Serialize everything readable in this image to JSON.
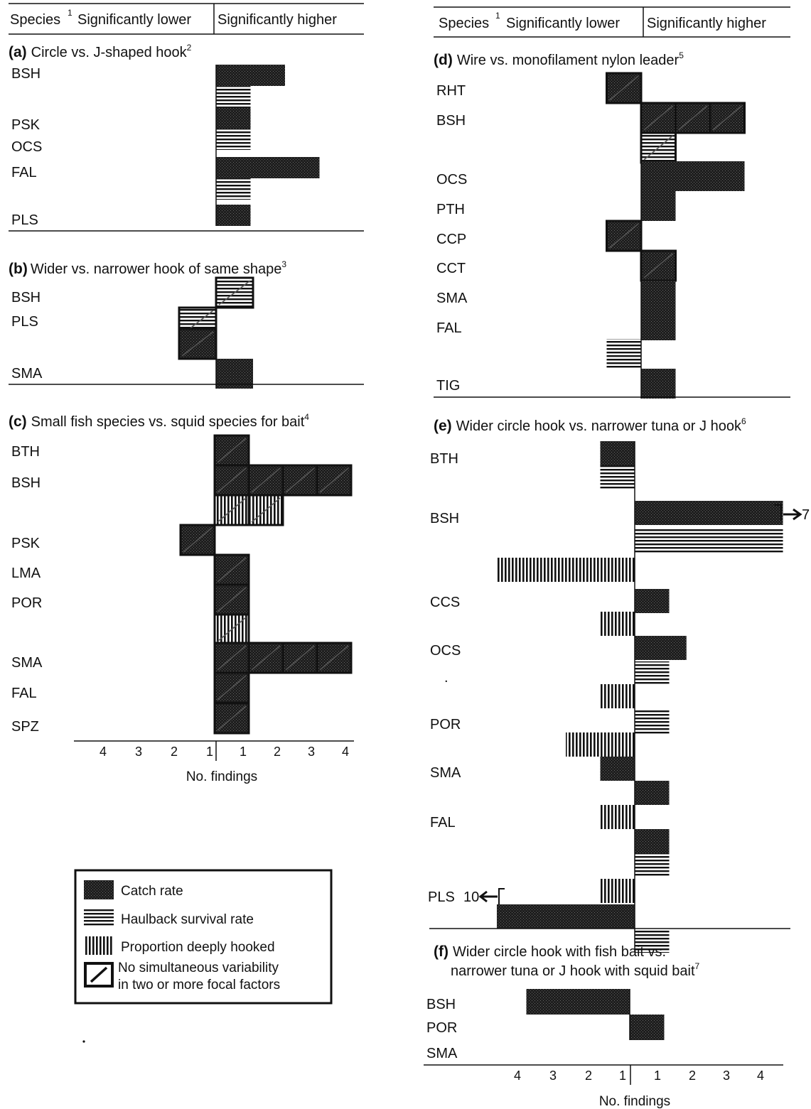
{
  "header_left": {
    "species": "Species",
    "species_sup": "1",
    "lower": "Significantly lower",
    "higher": "Significantly higher"
  },
  "header_right": {
    "species": "Species",
    "species_sup": "1",
    "lower": "Significantly lower",
    "higher": "Significantly higher"
  },
  "axis_left": {
    "ticks": [
      "4",
      "3",
      "2",
      "1",
      "1",
      "2",
      "3",
      "4"
    ],
    "label": "No. findings"
  },
  "axis_right": {
    "ticks": [
      "4",
      "3",
      "2",
      "1",
      "1",
      "2",
      "3",
      "4"
    ],
    "label": "No. findings"
  },
  "legend": {
    "catch": "Catch rate",
    "survival": "Haulback survival rate",
    "deep": "Proportion deeply hooked",
    "nosim_1": "No simultaneous variability",
    "nosim_2": "in two or more focal factors"
  },
  "chart_data": [
    {
      "type": "bar",
      "panel": "a",
      "title": "Circle vs. J-shaped hook",
      "title_sup": "2",
      "xlim": [
        -4,
        4
      ],
      "species_labels": [
        "BSH",
        "PSK",
        "OCS",
        "FAL",
        "PLS"
      ],
      "bars": [
        {
          "metric": "catch",
          "value": 2,
          "nosim": false
        },
        {
          "metric": "survival",
          "value": 1,
          "nosim": false
        },
        {
          "metric": "catch",
          "value": 1,
          "nosim": false
        },
        {
          "metric": "survival",
          "value": 1,
          "nosim": false
        },
        {
          "metric": "catch",
          "value": 3,
          "nosim": false
        },
        {
          "metric": "survival",
          "value": 1,
          "nosim": false
        },
        {
          "metric": "catch",
          "value": 1,
          "nosim": false
        }
      ]
    },
    {
      "type": "bar",
      "panel": "b",
      "title": "Wider vs. narrower hook of same shape",
      "title_sup": "3",
      "xlim": [
        -4,
        4
      ],
      "species_labels": [
        "BSH",
        "PLS",
        "SMA"
      ],
      "bars": [
        {
          "metric": "survival",
          "value": 1,
          "nosim": true
        },
        {
          "metric": "survival",
          "value": -1,
          "nosim": true
        },
        {
          "metric": "catch",
          "value": -1,
          "nosim": true
        },
        {
          "metric": "catch",
          "value": 1,
          "nosim": false
        }
      ]
    },
    {
      "type": "bar",
      "panel": "c",
      "title": "Small fish species vs. squid species for bait",
      "title_sup": "4",
      "xlim": [
        -4,
        4
      ],
      "species_labels": [
        "BTH",
        "BSH",
        "PSK",
        "LMA",
        "POR",
        "SMA",
        "FAL",
        "SPZ"
      ],
      "bars": [
        {
          "metric": "catch",
          "value": 1,
          "nosim": true
        },
        {
          "metric": "catch",
          "value": 4,
          "nosim": true
        },
        {
          "metric": "deep",
          "value": 2,
          "nosim": true
        },
        {
          "metric": "catch",
          "value": -1,
          "nosim": true
        },
        {
          "metric": "catch",
          "value": 1,
          "nosim": true
        },
        {
          "metric": "catch",
          "value": 1,
          "nosim": true
        },
        {
          "metric": "deep",
          "value": 1,
          "nosim": true
        },
        {
          "metric": "catch",
          "value": 4,
          "nosim": true
        },
        {
          "metric": "catch",
          "value": 1,
          "nosim": true
        },
        {
          "metric": "catch",
          "value": 1,
          "nosim": true
        }
      ]
    },
    {
      "type": "bar",
      "panel": "d",
      "title": "Wire vs. monofilament nylon leader",
      "title_sup": "5",
      "xlim": [
        -4,
        4
      ],
      "species_labels": [
        "RHT",
        "BSH",
        "OCS",
        "PTH",
        "CCP",
        "CCT",
        "SMA",
        "FAL",
        "TIG"
      ],
      "bars": [
        {
          "metric": "catch",
          "value": -1,
          "nosim": true
        },
        {
          "metric": "catch",
          "value": 3,
          "nosim": true
        },
        {
          "metric": "survival",
          "value": 1,
          "nosim": true
        },
        {
          "metric": "catch",
          "value": 3,
          "nosim": false
        },
        {
          "metric": "catch",
          "value": 1,
          "nosim": false
        },
        {
          "metric": "catch",
          "value": -1,
          "nosim": true
        },
        {
          "metric": "catch",
          "value": 1,
          "nosim": true
        },
        {
          "metric": "catch",
          "value": 1,
          "nosim": false
        },
        {
          "metric": "catch",
          "value": 1,
          "nosim": false
        },
        {
          "metric": "survival",
          "value": -1,
          "nosim": false
        },
        {
          "metric": "catch",
          "value": 1,
          "nosim": false
        }
      ]
    },
    {
      "type": "bar",
      "panel": "e",
      "title": "Wider circle hook vs. narrower tuna or J hook",
      "title_sup": "6",
      "xlim": [
        -4,
        4
      ],
      "species_labels": [
        "BTH",
        "BSH",
        "CCS",
        "OCS",
        ".",
        "POR",
        "SMA",
        "FAL",
        "PLS"
      ],
      "bars": [
        {
          "metric": "catch",
          "value": -1,
          "nosim": false
        },
        {
          "metric": "survival",
          "value": -1,
          "nosim": false
        },
        {
          "metric": "catch",
          "value": 4.3,
          "nosim": false
        },
        {
          "metric": "survival",
          "value": 4.3,
          "nosim": false
        },
        {
          "metric": "deep",
          "value": -4,
          "nosim": false
        },
        {
          "metric": "catch",
          "value": 1,
          "nosim": false
        },
        {
          "metric": "deep",
          "value": -1,
          "nosim": false
        },
        {
          "metric": "catch",
          "value": 1.5,
          "nosim": false
        },
        {
          "metric": "survival",
          "value": 1,
          "nosim": false
        },
        {
          "metric": "deep",
          "value": -1,
          "nosim": false
        },
        {
          "metric": "survival",
          "value": 1,
          "nosim": false
        },
        {
          "metric": "deep",
          "value": -2,
          "nosim": false
        },
        {
          "metric": "catch",
          "value": -1,
          "nosim": false
        },
        {
          "metric": "catch",
          "value": 1,
          "nosim": false
        },
        {
          "metric": "deep",
          "value": -1,
          "nosim": false
        },
        {
          "metric": "catch",
          "value": 1,
          "nosim": false
        },
        {
          "metric": "survival",
          "value": 1,
          "nosim": false
        },
        {
          "metric": "deep",
          "value": -1,
          "nosim": false
        },
        {
          "metric": "catch",
          "value": -4,
          "nosim": false
        },
        {
          "metric": "survival",
          "value": 1,
          "nosim": false
        }
      ],
      "overflow_labels": [
        {
          "species": "BSH",
          "text": "7"
        },
        {
          "species": "PLS",
          "text": "10"
        }
      ]
    },
    {
      "type": "bar",
      "panel": "f",
      "title_line1": "Wider circle hook with fish bait vs.",
      "title_line2": "narrower tuna or J hook with squid bait",
      "title_sup": "7",
      "xlim": [
        -4,
        4
      ],
      "species_labels": [
        "BSH",
        "POR",
        "SMA"
      ],
      "bars": [
        {
          "metric": "catch",
          "value": -3,
          "nosim": false
        },
        {
          "metric": "catch",
          "value": 1,
          "nosim": false
        }
      ]
    }
  ]
}
